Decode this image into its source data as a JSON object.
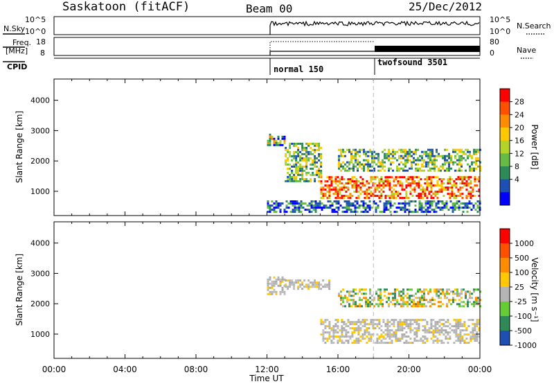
{
  "header": {
    "station": "Saskatoon (fitACF)",
    "beam": "Beam 00",
    "date": "25/Dec/2012"
  },
  "top_panels": {
    "nsky_label": "N.Sky",
    "nsky_ticks": [
      "10^5",
      "10^0"
    ],
    "nsearch_ticks": [
      "10^5",
      "10^0"
    ],
    "nsearch_label": "N.Search",
    "freq_label_1": "Freq.",
    "freq_label_2": "[MHz]",
    "freq_ticks": [
      "18",
      "8"
    ],
    "nave_ticks": [
      "80",
      "0"
    ],
    "nave_label": "Nave",
    "cpid_label": "CPID",
    "cpid_1": "normal 150",
    "cpid_2": "twofsound 3501"
  },
  "chart_data": [
    {
      "type": "heatmap",
      "title": "",
      "xlabel": "Time UT",
      "ylabel": "Slant Range [km]",
      "x_ticks": [
        "00:00",
        "04:00",
        "08:00",
        "12:00",
        "16:00",
        "20:00",
        "00:00"
      ],
      "xlim": [
        0,
        24
      ],
      "y_ticks": [
        "1000",
        "2000",
        "3000",
        "4000"
      ],
      "ylim": [
        200,
        4700
      ],
      "colorbar_label": "Power [dB]",
      "colorbar_ticks": [
        "28",
        "24",
        "20",
        "16",
        "12",
        "8",
        "4"
      ],
      "colorbar_colors": [
        "#0000ff",
        "#1e50b4",
        "#2e8b57",
        "#66bb44",
        "#b4d228",
        "#ffc800",
        "#ff8c00",
        "#ff5000",
        "#ff0000"
      ],
      "data_regions": [
        {
          "t_start": 12.0,
          "t_end": 24.0,
          "range_start": 300,
          "range_end": 700,
          "level": "low"
        },
        {
          "t_start": 12.0,
          "t_end": 13.0,
          "range_start": 2500,
          "range_end": 2900,
          "level": "mixed"
        },
        {
          "t_start": 13.0,
          "t_end": 15.0,
          "range_start": 1300,
          "range_end": 2600,
          "level": "medium"
        },
        {
          "t_start": 15.0,
          "t_end": 24.0,
          "range_start": 800,
          "range_end": 1500,
          "level": "high"
        },
        {
          "t_start": 16.0,
          "t_end": 24.0,
          "range_start": 1700,
          "range_end": 2400,
          "level": "medium"
        }
      ]
    },
    {
      "type": "heatmap",
      "title": "",
      "xlabel": "Time UT",
      "ylabel": "Slant Range [km]",
      "x_ticks": [
        "00:00",
        "04:00",
        "08:00",
        "12:00",
        "16:00",
        "20:00",
        "00:00"
      ],
      "xlim": [
        0,
        24
      ],
      "y_ticks": [
        "1000",
        "2000",
        "3000",
        "4000"
      ],
      "ylim": [
        200,
        4700
      ],
      "colorbar_label": "Velocity [m s⁻¹]",
      "colorbar_ticks": [
        "1000",
        "500",
        "100",
        "25",
        "-25",
        "-100",
        "-500",
        "-1000"
      ],
      "colorbar_colors": [
        "#1e50b4",
        "#2e8b57",
        "#66cc33",
        "#b4b4b4",
        "#ffc800",
        "#ff8c00",
        "#ff5000",
        "#ff0000"
      ],
      "data_regions": [
        {
          "t_start": 12.0,
          "t_end": 13.0,
          "range_start": 2300,
          "range_end": 2900,
          "level": "ground"
        },
        {
          "t_start": 13.0,
          "t_end": 15.5,
          "range_start": 2500,
          "range_end": 2800,
          "level": "ground"
        },
        {
          "t_start": 15.0,
          "t_end": 24.0,
          "range_start": 700,
          "range_end": 1500,
          "level": "ground"
        },
        {
          "t_start": 16.0,
          "t_end": 24.0,
          "range_start": 1900,
          "range_end": 2500,
          "level": "positive"
        }
      ]
    }
  ]
}
